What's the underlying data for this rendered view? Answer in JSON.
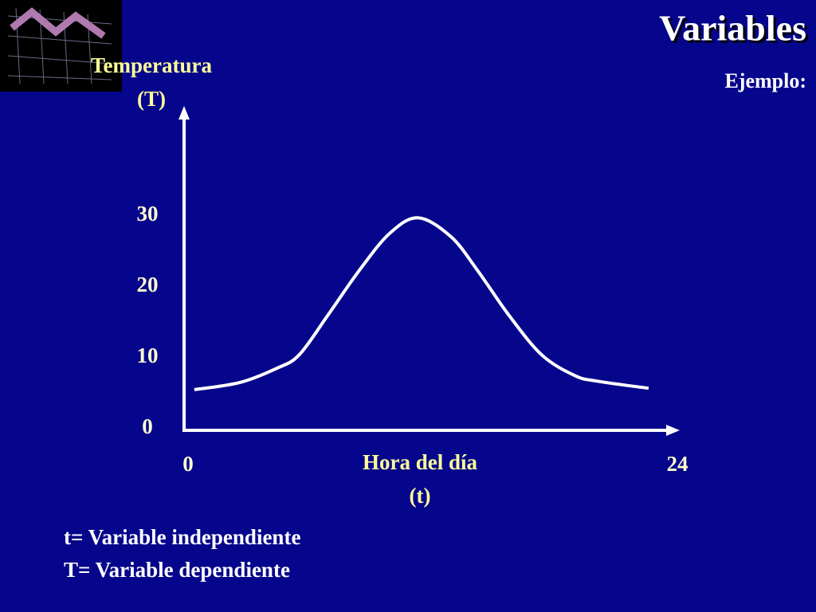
{
  "chart_data": {
    "type": "line",
    "title": "Variables",
    "subtitle": "Ejemplo:",
    "y_label": [
      "Temperatura",
      "(T)"
    ],
    "x_label": [
      "Hora del día",
      "(t)"
    ],
    "notes": [
      "t= Variable independiente",
      "T= Variable dependiente"
    ],
    "x": [
      0.5,
      2.7,
      4.5,
      5.6,
      7,
      8.5,
      10,
      11.4,
      13,
      14.3,
      15.8,
      17.4,
      19,
      20.1,
      22.6
    ],
    "values": [
      5.5,
      6.5,
      8.5,
      10.4,
      16,
      22.2,
      27.5,
      29.7,
      27,
      22.2,
      16,
      10.4,
      7.5,
      6.7,
      5.7
    ],
    "color": "#ffffff",
    "xlim": [
      0,
      24
    ],
    "xticks": [
      0,
      24
    ],
    "ylim": [
      0,
      45
    ],
    "yticks": [
      0,
      10,
      20,
      30
    ]
  }
}
